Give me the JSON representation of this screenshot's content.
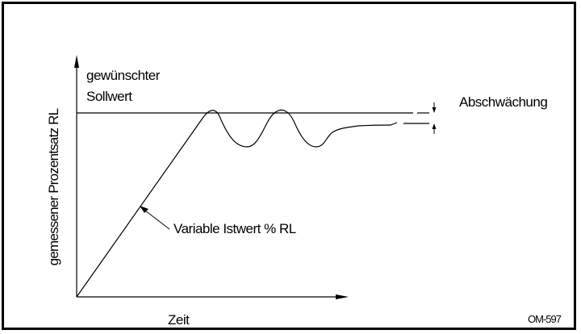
{
  "diagram": {
    "y_axis_label": "gemessener Prozentsatz RL",
    "x_axis_label": "Zeit",
    "setpoint_label_line1": "gewünschter",
    "setpoint_label_line2": "Sollwert",
    "curve_label": "Variable Istwert % RL",
    "damping_label": "Abschwächung",
    "figure_id": "OM-597",
    "line_color": "#000000"
  }
}
